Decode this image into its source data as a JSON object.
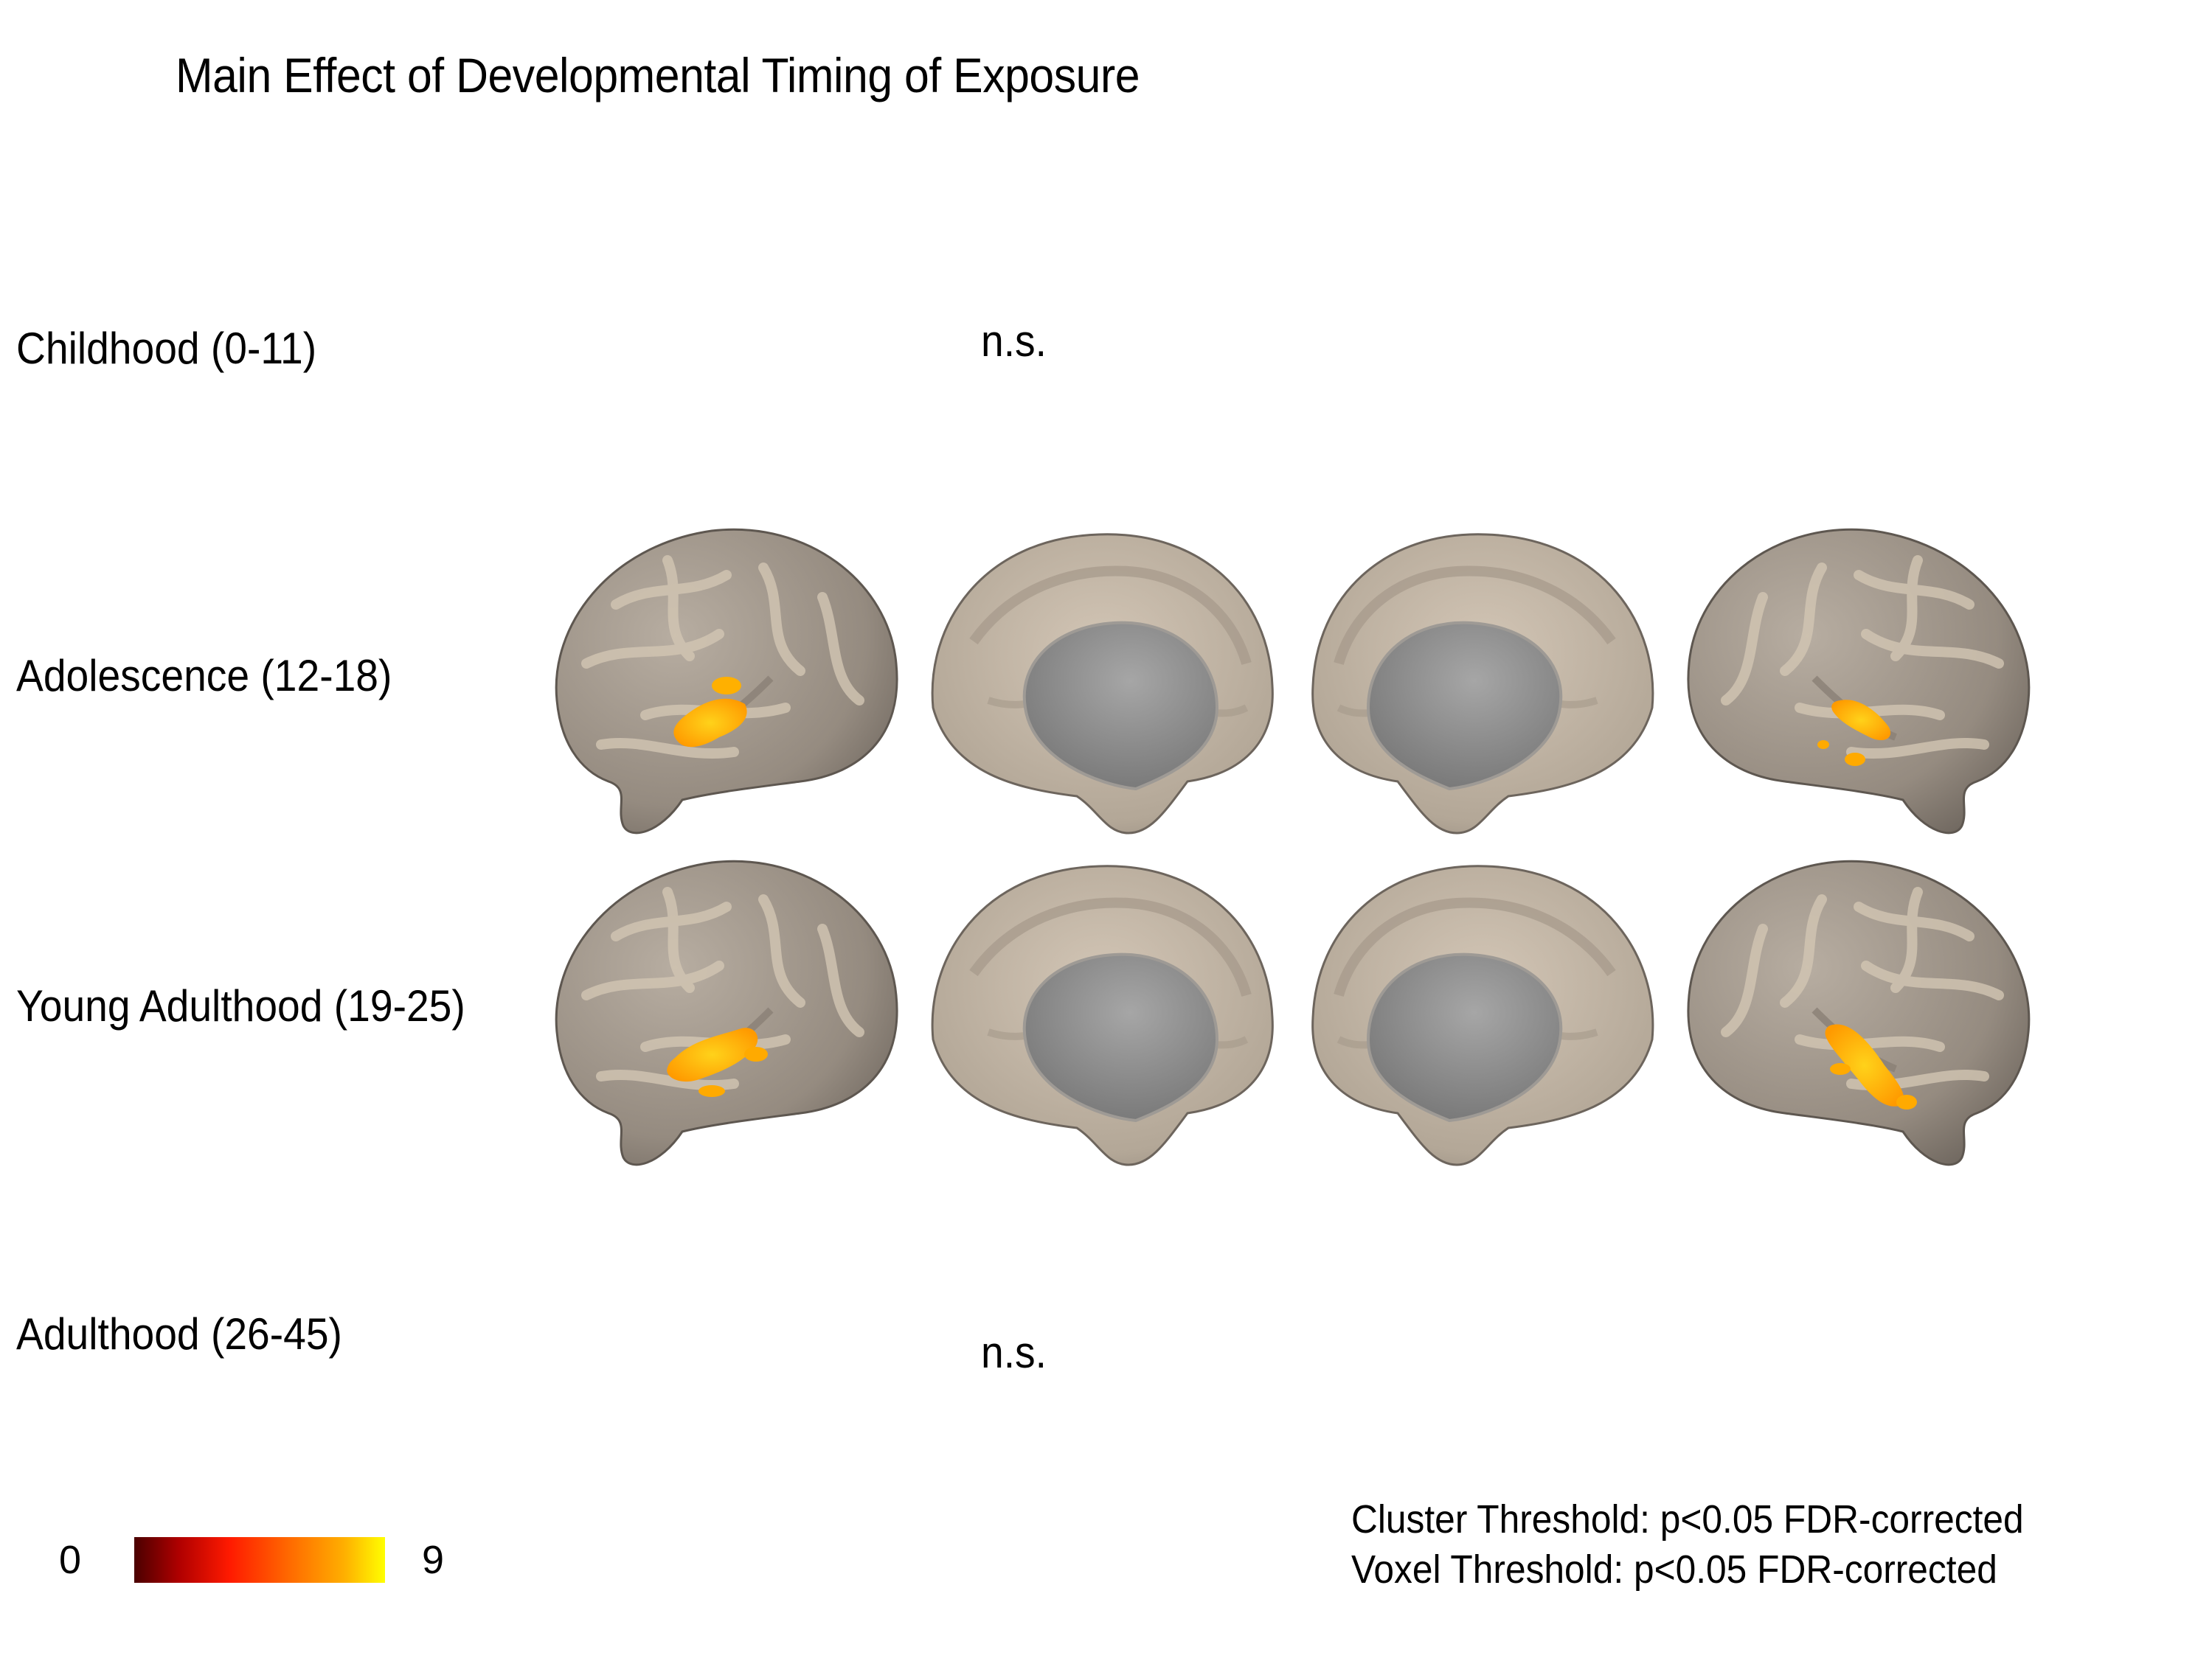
{
  "title": "Main Effect of Developmental Timing of Exposure",
  "rows": [
    {
      "label": "Childhood (0-11)",
      "result": "n.s."
    },
    {
      "label": "Adolescence (12-18)",
      "result": ""
    },
    {
      "label": "Young Adulthood (19-25)",
      "result": ""
    },
    {
      "label": "Adulthood (26-45)",
      "result": "n.s."
    }
  ],
  "brain_views": [
    "left-lateral",
    "left-medial",
    "right-medial",
    "right-lateral"
  ],
  "colorbar": {
    "min": "0",
    "max": "9",
    "colors": [
      "#4a0000",
      "#ff1a00",
      "#ff6a00",
      "#ffff00"
    ]
  },
  "thresholds": {
    "cluster": "Cluster Threshold: p<0.05 FDR-corrected",
    "voxel": "Voxel Threshold: p<0.05 FDR-corrected"
  },
  "colors": {
    "cortex": "#a89e92",
    "gyri": "#d6c9b8",
    "medial_wall": "#8c8c8c",
    "activation": "#ffaa00"
  }
}
